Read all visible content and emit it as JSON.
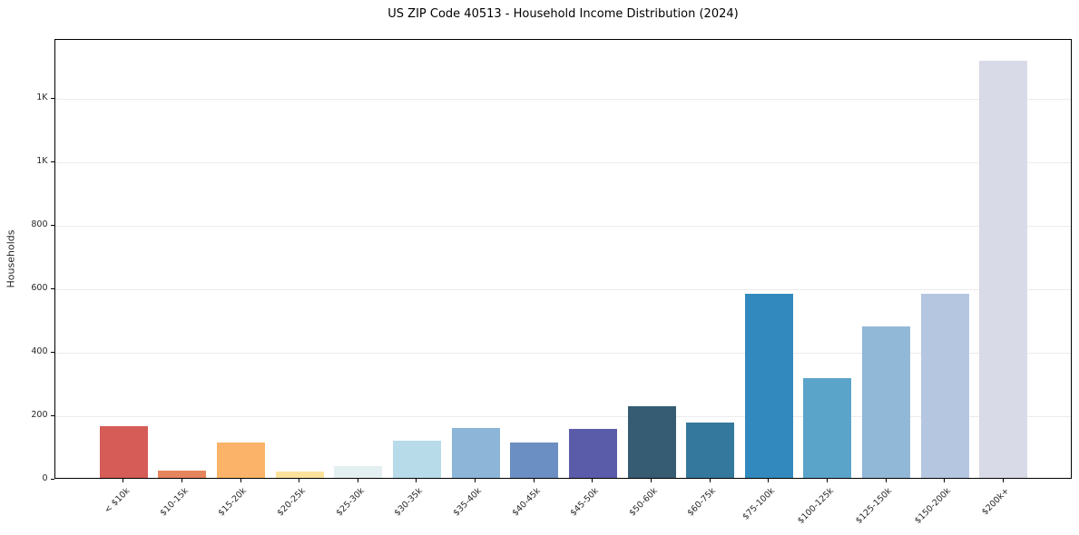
{
  "header": {
    "title": "US ZIP Code 40513 - Household Income Distribution (2024)"
  },
  "chart_data": {
    "type": "bar",
    "title": "US ZIP Code 40513 - Household Income Distribution (2024)",
    "xlabel": "",
    "ylabel": "Households",
    "categories": [
      "< $10k",
      "$10-15k",
      "$15-20k",
      "$20-25k",
      "$25-30k",
      "$30-35k",
      "$35-40k",
      "$40-45k",
      "$45-50k",
      "$50-60k",
      "$60-75k",
      "$75-100k",
      "$100-125k",
      "$125-150k",
      "$150-200k",
      "$200k+"
    ],
    "values": [
      163,
      22,
      111,
      19,
      36,
      116,
      155,
      111,
      152,
      225,
      174,
      580,
      314,
      477,
      578,
      1314
    ],
    "bar_colors": [
      "#d65c57",
      "#e5855e",
      "#fab368",
      "#fbe29c",
      "#e3eff1",
      "#b8dbea",
      "#8cb5d8",
      "#6b8fc3",
      "#5b5ca9",
      "#355c72",
      "#35789d",
      "#3289bd",
      "#5ba4c9",
      "#92b8d8",
      "#b5c6e0",
      "#d9dae7"
    ],
    "ylim": [
      0,
      1385
    ],
    "yticks": {
      "values": [
        0,
        200,
        400,
        600,
        800,
        1000,
        1200
      ],
      "labels": [
        "0",
        "200",
        "400",
        "600",
        "800",
        "1K",
        "1K"
      ]
    },
    "grid": "horizontal",
    "legend": "none",
    "colors": {
      "background": "#ffffff",
      "gridline": "#ebebee",
      "axis": "#000000",
      "text": "#262626"
    }
  }
}
